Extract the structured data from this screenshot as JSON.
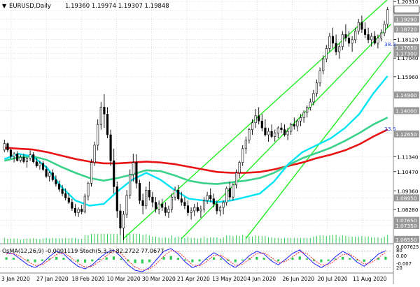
{
  "header": {
    "symbol_timeframe": "EURUSD,Daily",
    "ohlc": "1.19360 1.19974 1.19307 1.19848"
  },
  "indicator_header": "OsMA(12,26,9) -0.0001119   Stoch(5,3,3) 82.2722 77.0677",
  "colors": {
    "background": "#ffffff",
    "grid": "#c8c8c8",
    "bull": "#000000",
    "bear": "#000000",
    "ema_fast": "#00e5f5",
    "ema_mid": "#3ad28a",
    "ema_slow": "#e81313",
    "channel": "#22ee22",
    "price_label_bg": "#999999",
    "current_price_bg": "#ffffff",
    "stoch_main": "#1a1aff",
    "stoch_signal": "#ff2b2b",
    "osma_bars": "#2ecc52",
    "volume_bars": "#2ecc52"
  },
  "chart_data": [
    {
      "type": "candlestick",
      "title": "EURUSD,Daily",
      "y_ticks": [
        "1.20310",
        "1.19760",
        "1.19290",
        "1.18720",
        "1.18120",
        "1.17650",
        "1.17300",
        "1.17040",
        "1.15960",
        "1.14900",
        "1.14000",
        "1.12650",
        "1.11340",
        "1.10470",
        "1.09360",
        "1.08950",
        "1.08280",
        "1.07650",
        "1.07350",
        "1.06550"
      ],
      "highlighted_levels": [
        "1.19760",
        "1.19290",
        "1.18720",
        "1.17650",
        "1.17300",
        "1.14900",
        "1.14000",
        "1.12650",
        "1.08950",
        "1.07650",
        "1.07350",
        "1.06550"
      ],
      "x_labels": [
        "3 Jan 2020",
        "27 Jan 2020",
        "18 Feb 2020",
        "10 Mar 2020",
        "30 Mar 2020",
        "21 Apr 2020",
        "13 May 2020",
        "4 Jun 2020",
        "26 Jun 2020",
        "20 Jul 2020",
        "11 Aug 2020"
      ],
      "annotations": [
        "38.2",
        "23.6"
      ],
      "ylim": [
        1.063,
        1.204
      ],
      "ohlc": [
        [
          1.1172,
          1.1232,
          1.116,
          1.1209
        ],
        [
          1.1209,
          1.1215,
          1.116,
          1.1172
        ],
        [
          1.1172,
          1.118,
          1.112,
          1.1135
        ],
        [
          1.1135,
          1.116,
          1.11,
          1.115
        ],
        [
          1.115,
          1.1165,
          1.1105,
          1.1112
        ],
        [
          1.1112,
          1.1145,
          1.11,
          1.113
        ],
        [
          1.113,
          1.115,
          1.1095,
          1.1105
        ],
        [
          1.1105,
          1.113,
          1.107,
          1.1125
        ],
        [
          1.1125,
          1.117,
          1.111,
          1.1145
        ],
        [
          1.1145,
          1.116,
          1.1095,
          1.1104
        ],
        [
          1.1104,
          1.1125,
          1.107,
          1.108
        ],
        [
          1.108,
          1.111,
          1.106,
          1.1095
        ],
        [
          1.1095,
          1.111,
          1.105,
          1.106
        ],
        [
          1.106,
          1.108,
          1.101,
          1.102
        ],
        [
          1.102,
          1.105,
          1.099,
          1.104
        ],
        [
          1.104,
          1.106,
          1.099,
          1.1
        ],
        [
          1.1,
          1.1025,
          1.096,
          1.0975
        ],
        [
          1.0975,
          1.0995,
          1.093,
          1.0945
        ],
        [
          1.0945,
          1.097,
          1.0905,
          1.092
        ],
        [
          1.092,
          1.095,
          1.088,
          1.0895
        ],
        [
          1.0895,
          1.0925,
          1.086,
          1.087
        ],
        [
          1.087,
          1.089,
          1.082,
          1.0835
        ],
        [
          1.0835,
          1.086,
          1.079,
          1.081
        ],
        [
          1.081,
          1.084,
          1.0785,
          1.083
        ],
        [
          1.083,
          1.0855,
          1.08,
          1.0815
        ],
        [
          1.0815,
          1.092,
          1.0805,
          1.0905
        ],
        [
          1.0905,
          1.099,
          1.088,
          1.098
        ],
        [
          1.098,
          1.112,
          1.096,
          1.11
        ],
        [
          1.11,
          1.122,
          1.108,
          1.12
        ],
        [
          1.12,
          1.135,
          1.117,
          1.132
        ],
        [
          1.132,
          1.145,
          1.129,
          1.142
        ],
        [
          1.142,
          1.1495,
          1.13,
          1.138
        ],
        [
          1.138,
          1.142,
          1.124,
          1.126
        ],
        [
          1.126,
          1.129,
          1.108,
          1.111
        ],
        [
          1.111,
          1.118,
          1.092,
          1.096
        ],
        [
          1.096,
          1.099,
          1.078,
          1.082
        ],
        [
          1.082,
          1.086,
          1.068,
          1.072
        ],
        [
          1.072,
          1.082,
          1.065,
          1.08
        ],
        [
          1.08,
          1.094,
          1.078,
          1.091
        ],
        [
          1.091,
          1.106,
          1.089,
          1.103
        ],
        [
          1.103,
          1.115,
          1.099,
          1.11
        ],
        [
          1.11,
          1.1148,
          1.095,
          1.098
        ],
        [
          1.098,
          1.1,
          1.086,
          1.088
        ],
        [
          1.088,
          1.092,
          1.08,
          1.085
        ],
        [
          1.085,
          1.096,
          1.083,
          1.094
        ],
        [
          1.094,
          1.099,
          1.088,
          1.09
        ],
        [
          1.09,
          1.093,
          1.084,
          1.087
        ],
        [
          1.087,
          1.09,
          1.081,
          1.083
        ],
        [
          1.083,
          1.088,
          1.08,
          1.086
        ],
        [
          1.086,
          1.089,
          1.082,
          1.084
        ],
        [
          1.084,
          1.087,
          1.079,
          1.081
        ],
        [
          1.081,
          1.085,
          1.078,
          1.083
        ],
        [
          1.083,
          1.092,
          1.081,
          1.09
        ],
        [
          1.09,
          1.096,
          1.088,
          1.094
        ],
        [
          1.094,
          1.097,
          1.088,
          1.089
        ],
        [
          1.089,
          1.093,
          1.085,
          1.087
        ],
        [
          1.087,
          1.09,
          1.083,
          1.085
        ],
        [
          1.085,
          1.088,
          1.079,
          1.081
        ],
        [
          1.081,
          1.084,
          1.077,
          1.082
        ],
        [
          1.082,
          1.086,
          1.079,
          1.084
        ],
        [
          1.084,
          1.087,
          1.081,
          1.082
        ],
        [
          1.082,
          1.085,
          1.078,
          1.083
        ],
        [
          1.083,
          1.09,
          1.081,
          1.088
        ],
        [
          1.088,
          1.093,
          1.086,
          1.091
        ],
        [
          1.091,
          1.095,
          1.087,
          1.089
        ],
        [
          1.089,
          1.092,
          1.084,
          1.086
        ],
        [
          1.086,
          1.088,
          1.08,
          1.082
        ],
        [
          1.082,
          1.085,
          1.079,
          1.084
        ],
        [
          1.084,
          1.088,
          1.08,
          1.087
        ],
        [
          1.087,
          1.096,
          1.085,
          1.095
        ],
        [
          1.095,
          1.099,
          1.088,
          1.09
        ],
        [
          1.09,
          1.098,
          1.088,
          1.097
        ],
        [
          1.097,
          1.106,
          1.095,
          1.104
        ],
        [
          1.104,
          1.111,
          1.101,
          1.11
        ],
        [
          1.11,
          1.12,
          1.108,
          1.118
        ],
        [
          1.118,
          1.125,
          1.115,
          1.123
        ],
        [
          1.123,
          1.13,
          1.121,
          1.129
        ],
        [
          1.129,
          1.135,
          1.126,
          1.133
        ],
        [
          1.133,
          1.141,
          1.13,
          1.137
        ],
        [
          1.137,
          1.142,
          1.132,
          1.134
        ],
        [
          1.134,
          1.138,
          1.128,
          1.13
        ],
        [
          1.13,
          1.135,
          1.125,
          1.126
        ],
        [
          1.126,
          1.13,
          1.122,
          1.128
        ],
        [
          1.128,
          1.132,
          1.124,
          1.125
        ],
        [
          1.125,
          1.129,
          1.122,
          1.127
        ],
        [
          1.127,
          1.131,
          1.124,
          1.13
        ],
        [
          1.13,
          1.133,
          1.127,
          1.129
        ],
        [
          1.129,
          1.132,
          1.125,
          1.126
        ],
        [
          1.126,
          1.13,
          1.123,
          1.128
        ],
        [
          1.128,
          1.133,
          1.126,
          1.132
        ],
        [
          1.132,
          1.136,
          1.129,
          1.131
        ],
        [
          1.131,
          1.135,
          1.128,
          1.134
        ],
        [
          1.134,
          1.138,
          1.131,
          1.136
        ],
        [
          1.136,
          1.14,
          1.133,
          1.139
        ],
        [
          1.139,
          1.143,
          1.136,
          1.142
        ],
        [
          1.142,
          1.147,
          1.14,
          1.145
        ],
        [
          1.145,
          1.152,
          1.143,
          1.15
        ],
        [
          1.15,
          1.158,
          1.148,
          1.156
        ],
        [
          1.156,
          1.165,
          1.154,
          1.163
        ],
        [
          1.163,
          1.172,
          1.161,
          1.17
        ],
        [
          1.17,
          1.178,
          1.168,
          1.176
        ],
        [
          1.176,
          1.185,
          1.174,
          1.183
        ],
        [
          1.183,
          1.188,
          1.176,
          1.179
        ],
        [
          1.179,
          1.184,
          1.172,
          1.174
        ],
        [
          1.174,
          1.179,
          1.17,
          1.177
        ],
        [
          1.177,
          1.186,
          1.175,
          1.184
        ],
        [
          1.184,
          1.19,
          1.18,
          1.182
        ],
        [
          1.182,
          1.186,
          1.177,
          1.179
        ],
        [
          1.179,
          1.183,
          1.174,
          1.181
        ],
        [
          1.181,
          1.188,
          1.179,
          1.186
        ],
        [
          1.186,
          1.193,
          1.184,
          1.191
        ],
        [
          1.191,
          1.195,
          1.185,
          1.187
        ],
        [
          1.187,
          1.191,
          1.182,
          1.184
        ],
        [
          1.184,
          1.188,
          1.179,
          1.181
        ],
        [
          1.181,
          1.185,
          1.177,
          1.183
        ],
        [
          1.183,
          1.186,
          1.178,
          1.179
        ],
        [
          1.179,
          1.184,
          1.176,
          1.182
        ],
        [
          1.182,
          1.187,
          1.18,
          1.185
        ],
        [
          1.185,
          1.192,
          1.183,
          1.19
        ],
        [
          1.19,
          1.1999,
          1.188,
          1.1985
        ]
      ],
      "ema_fast": [
        1.112,
        1.115,
        1.1135,
        1.107,
        1.096,
        1.088,
        1.085,
        1.086,
        1.0935,
        1.1,
        1.104,
        1.1,
        1.094,
        1.089,
        1.088,
        1.087,
        1.088,
        1.09,
        1.092,
        1.099,
        1.109,
        1.116,
        1.12,
        1.124,
        1.13,
        1.138,
        1.15,
        1.16
      ],
      "ema_mid": [
        1.111,
        1.113,
        1.1135,
        1.1115,
        1.1075,
        1.104,
        1.101,
        1.0995,
        1.101,
        1.103,
        1.1055,
        1.105,
        1.1025,
        1.0995,
        1.098,
        1.0975,
        1.0985,
        1.0995,
        1.101,
        1.104,
        1.1085,
        1.1125,
        1.1155,
        1.1185,
        1.1225,
        1.127,
        1.132,
        1.136
      ],
      "ema_slow": [
        1.1185,
        1.118,
        1.1175,
        1.116,
        1.114,
        1.112,
        1.1105,
        1.1095,
        1.1095,
        1.11,
        1.1105,
        1.11,
        1.109,
        1.1075,
        1.106,
        1.1045,
        1.104,
        1.104,
        1.1045,
        1.106,
        1.108,
        1.11,
        1.1125,
        1.1145,
        1.117,
        1.1205,
        1.125,
        1.129
      ],
      "channel_lines": [
        {
          "name": "upper",
          "from": [
            37,
            1.066
          ],
          "to": [
            120,
            1.206
          ]
        },
        {
          "name": "middle",
          "from": [
            55,
            1.066
          ],
          "to": [
            120,
            1.19
          ]
        },
        {
          "name": "lower",
          "from": [
            75,
            1.066
          ],
          "to": [
            120,
            1.174
          ]
        }
      ]
    },
    {
      "type": "bar+line",
      "title": "OsMA(12,26,9) -0.0001119   Stoch(5,3,3) 82.2722 77.0677",
      "y_ticks": [
        "0.007625",
        "0.00",
        "-0.007",
        "80",
        "20"
      ],
      "stoch_main": [
        75,
        70,
        50,
        30,
        20,
        35,
        60,
        80,
        70,
        45,
        25,
        15,
        30,
        55,
        75,
        85,
        60,
        30,
        10,
        5,
        20,
        50,
        80,
        90,
        70,
        40,
        20,
        30,
        55,
        75,
        60,
        35,
        20,
        40,
        65,
        80,
        70,
        45,
        30,
        50,
        72,
        85,
        60,
        35,
        20,
        35,
        60,
        80,
        65,
        40,
        25,
        45,
        70,
        82
      ],
      "stoch_signal": [
        70,
        72,
        60,
        42,
        28,
        30,
        48,
        68,
        75,
        58,
        36,
        22,
        25,
        42,
        64,
        80,
        72,
        45,
        22,
        10,
        15,
        35,
        62,
        82,
        78,
        55,
        30,
        26,
        42,
        65,
        66,
        48,
        28,
        32,
        52,
        72,
        74,
        58,
        38,
        42,
        60,
        78,
        72,
        48,
        30,
        30,
        48,
        68,
        70,
        52,
        33,
        38,
        56,
        77
      ]
    }
  ]
}
